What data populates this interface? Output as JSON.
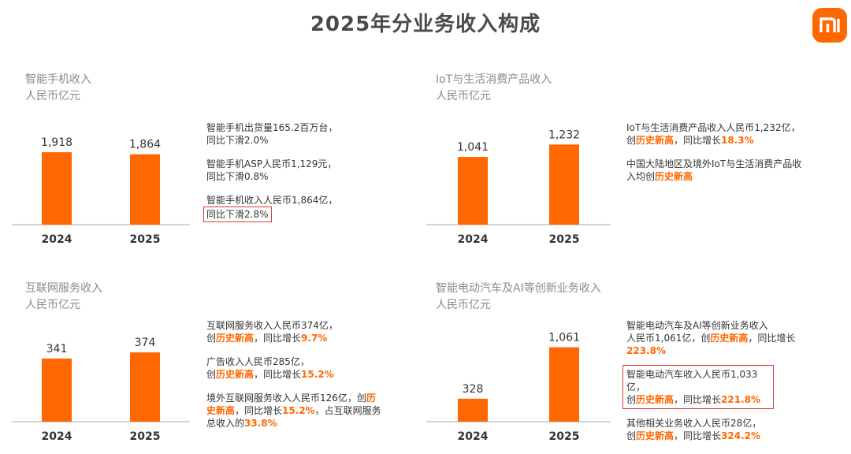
{
  "page": {
    "title": "2025年分业务收入构成",
    "colors": {
      "bar": "#ff6700",
      "highlight_text": "#ff6700",
      "box": "#d83a3a",
      "axis": "#aaaaaa"
    },
    "logo_icon": "mi-logo-icon"
  },
  "panels": {
    "smartphone": {
      "title_line1": "智能手机收入",
      "title_line2": "人民币亿元",
      "bullets": [
        {
          "line1": "智能手机出货量165.2百万台，",
          "line2": "同比下滑2.0%"
        },
        {
          "line1": "智能手机ASP人民币1,129元，",
          "line2": "同比下滑0.8%"
        },
        {
          "line1": "智能手机收入人民币1,864亿，",
          "line2": "同比下滑2.8%"
        }
      ]
    },
    "iot": {
      "title_line1": "IoT与生活消费产品收入",
      "title_line2": "人民币亿元",
      "b1_line1": "IoT与生活消费产品收入人民币1,232亿，",
      "b1_pre": "创",
      "b1_hl": "历史新高",
      "b1_mid": "，同比增长",
      "b1_val": "18.3%",
      "b2_line1": "中国大陆地区及境外IoT与生活消费产品收",
      "b2_pre": "入均创",
      "b2_hl": "历史新高"
    },
    "internet": {
      "title_line1": "互联网服务收入",
      "title_line2": "人民币亿元",
      "b1_line1": "互联网服务收入人民币374亿，",
      "b1_pre": "创",
      "b1_hl": "历史新高",
      "b1_mid": "，同比增长",
      "b1_val": "9.7%",
      "b2_line1": "广告收入人民币285亿，",
      "b2_pre": "创",
      "b2_hl": "历史新高",
      "b2_mid": "，同比增长",
      "b2_val": "15.2%",
      "b3_line1_a": "境外互联网服务收入人民币126亿，创",
      "b3_line1_hl": "历",
      "b3_line2_hl": "史新高",
      "b3_line2_mid": "，同比增长",
      "b3_line2_val": "15.2%",
      "b3_line2_tail": "，占互联网服务",
      "b3_line3_a": "总收入的",
      "b3_line3_val": "33.8%"
    },
    "ev": {
      "title_line1": "智能电动汽车及AI等创新业务收入",
      "title_line2": "人民币亿元",
      "b1_line1": "智能电动汽车及AI等创新业务收入",
      "b1_line2_a": "人民币1,061亿，创",
      "b1_line2_hl": "历史新高",
      "b1_line2_mid": "，同比增长",
      "b1_line3_val": "223.8%",
      "b2_line1": "智能电动汽车收入人民币1,033亿，",
      "b2_pre": "创",
      "b2_hl": "历史新高",
      "b2_mid": "，同比增长",
      "b2_val": "221.8%",
      "b3_line1": "其他相关业务收入人民币28亿，",
      "b3_pre": "创",
      "b3_hl": "历史新高",
      "b3_mid": "，同比增长",
      "b3_val": "324.2%"
    }
  },
  "chart_data": [
    {
      "type": "bar",
      "title": "智能手机收入",
      "ylabel": "人民币亿元",
      "categories": [
        "2024",
        "2025"
      ],
      "values": [
        1918,
        1864
      ],
      "value_labels": [
        "1,918",
        "1,864"
      ],
      "grid": false
    },
    {
      "type": "bar",
      "title": "IoT与生活消费产品收入",
      "ylabel": "人民币亿元",
      "categories": [
        "2024",
        "2025"
      ],
      "values": [
        1041,
        1232
      ],
      "value_labels": [
        "1,041",
        "1,232"
      ],
      "grid": false
    },
    {
      "type": "bar",
      "title": "互联网服务收入",
      "ylabel": "人民币亿元",
      "categories": [
        "2024",
        "2025"
      ],
      "values": [
        341,
        374
      ],
      "value_labels": [
        "341",
        "374"
      ],
      "grid": false
    },
    {
      "type": "bar",
      "title": "智能电动汽车及AI等创新业务收入",
      "ylabel": "人民币亿元",
      "categories": [
        "2024",
        "2025"
      ],
      "values": [
        328,
        1061
      ],
      "value_labels": [
        "328",
        "1,061"
      ],
      "grid": false
    }
  ]
}
